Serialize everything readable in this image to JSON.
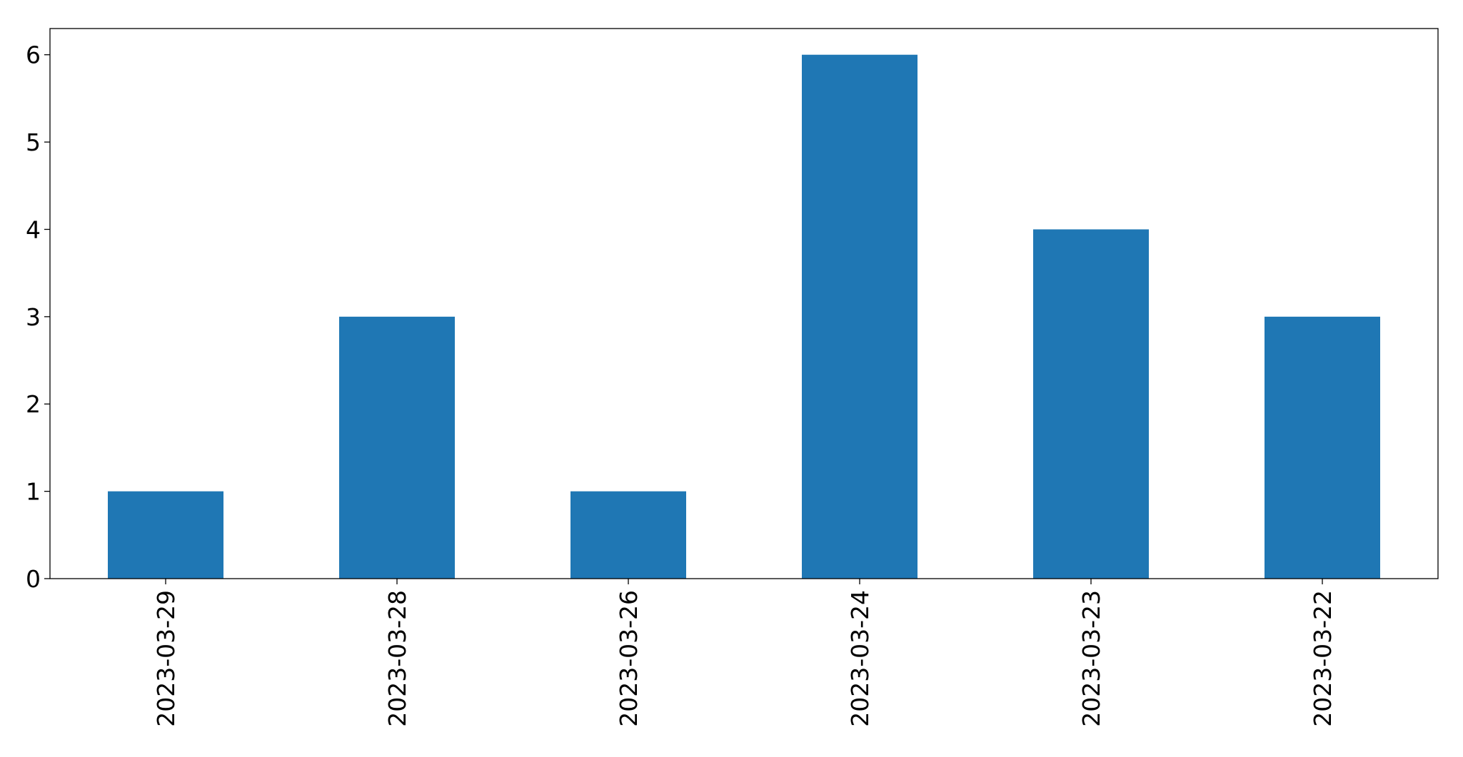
{
  "chart_data": {
    "type": "bar",
    "categories": [
      "2023-03-29",
      "2023-03-28",
      "2023-03-26",
      "2023-03-24",
      "2023-03-23",
      "2023-03-22"
    ],
    "values": [
      1,
      3,
      1,
      6,
      4,
      3
    ],
    "title": "",
    "xlabel": "",
    "ylabel": "",
    "ylim": [
      0,
      6.3
    ],
    "yticks": [
      0,
      1,
      2,
      3,
      4,
      5,
      6
    ],
    "grid": false,
    "legend": "none",
    "bar_color": "#1f77b4"
  }
}
